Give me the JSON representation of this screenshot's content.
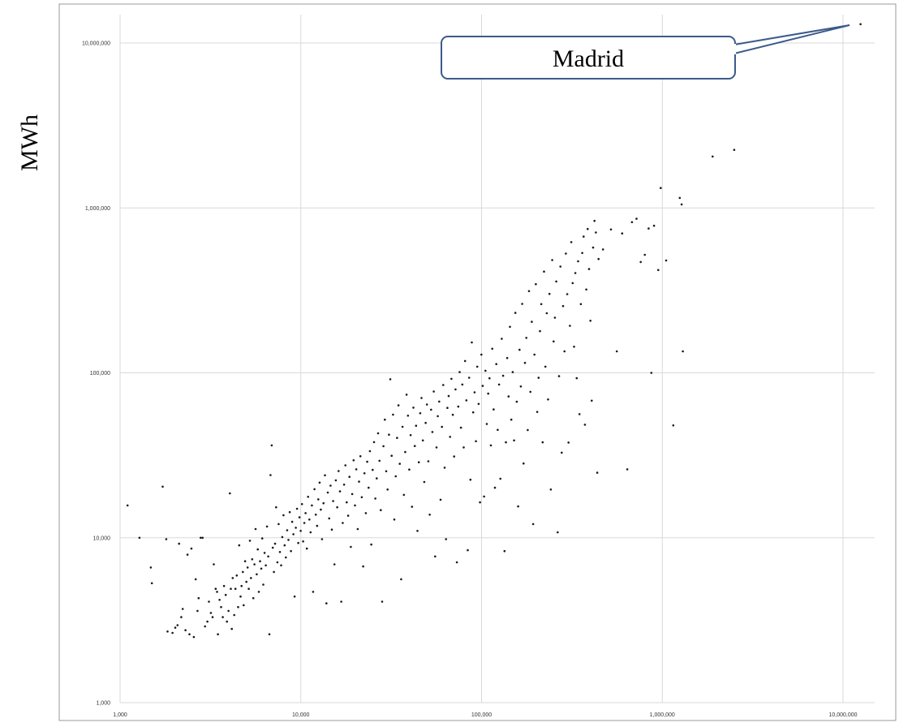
{
  "chart_data": {
    "type": "scatter",
    "title": "",
    "xlabel": "",
    "ylabel": "MWh",
    "x_scale": "log",
    "y_scale": "log",
    "xlim": [
      1000,
      10000000
    ],
    "ylim": [
      1000,
      10000000
    ],
    "grid": true,
    "x_ticks": [
      "1,000",
      "10,000",
      "100,000",
      "1,000,000",
      "10,000,000"
    ],
    "y_ticks": [
      "1,000",
      "10,000",
      "100,000",
      "1,000,000",
      "10,000,000"
    ],
    "annotation": {
      "label": "Madrid",
      "x": 12500000,
      "y": 13000000
    },
    "point_color": "#1a1a1a",
    "points": [
      [
        1100,
        15700
      ],
      [
        1280,
        10000
      ],
      [
        1480,
        6600
      ],
      [
        1500,
        5300
      ],
      [
        1720,
        20400
      ],
      [
        1800,
        9800
      ],
      [
        1830,
        2700
      ],
      [
        1950,
        2650
      ],
      [
        2020,
        2850
      ],
      [
        2080,
        2950
      ],
      [
        2120,
        9200
      ],
      [
        2180,
        3300
      ],
      [
        2220,
        3700
      ],
      [
        2300,
        2750
      ],
      [
        2360,
        7900
      ],
      [
        2420,
        2600
      ],
      [
        2480,
        8600
      ],
      [
        2560,
        2500
      ],
      [
        2620,
        5600
      ],
      [
        2680,
        3600
      ],
      [
        2720,
        4300
      ],
      [
        2790,
        10000
      ],
      [
        2860,
        10000
      ],
      [
        2950,
        2900
      ],
      [
        3040,
        3100
      ],
      [
        3100,
        4100
      ],
      [
        3180,
        3500
      ],
      [
        3250,
        3300
      ],
      [
        3300,
        6900
      ],
      [
        3380,
        4900
      ],
      [
        3440,
        4700
      ],
      [
        3480,
        2600
      ],
      [
        3550,
        4200
      ],
      [
        3620,
        3800
      ],
      [
        3700,
        3300
      ],
      [
        3760,
        5100
      ],
      [
        3840,
        4500
      ],
      [
        3900,
        3100
      ],
      [
        3980,
        3600
      ],
      [
        4050,
        18600
      ],
      [
        4100,
        4900
      ],
      [
        4150,
        2800
      ],
      [
        4200,
        5700
      ],
      [
        4280,
        3400
      ],
      [
        4350,
        4900
      ],
      [
        4420,
        5900
      ],
      [
        4500,
        3800
      ],
      [
        4560,
        9000
      ],
      [
        4640,
        4400
      ],
      [
        4700,
        5100
      ],
      [
        4780,
        6200
      ],
      [
        4830,
        3900
      ],
      [
        4920,
        7200
      ],
      [
        5000,
        5400
      ],
      [
        5080,
        6600
      ],
      [
        5150,
        4900
      ],
      [
        5230,
        9600
      ],
      [
        5300,
        5700
      ],
      [
        5380,
        7400
      ],
      [
        5460,
        4300
      ],
      [
        5540,
        6900
      ],
      [
        5620,
        11300
      ],
      [
        5700,
        6000
      ],
      [
        5780,
        8500
      ],
      [
        5860,
        4700
      ],
      [
        5950,
        7200
      ],
      [
        6040,
        6500
      ],
      [
        6120,
        9900
      ],
      [
        6200,
        5200
      ],
      [
        6300,
        8100
      ],
      [
        6400,
        6800
      ],
      [
        6500,
        11700
      ],
      [
        6600,
        7700
      ],
      [
        6700,
        2600
      ],
      [
        6800,
        24000
      ],
      [
        6900,
        36300
      ],
      [
        7000,
        8700
      ],
      [
        7100,
        6200
      ],
      [
        7200,
        9200
      ],
      [
        7300,
        15300
      ],
      [
        7420,
        7100
      ],
      [
        7540,
        12100
      ],
      [
        7660,
        8200
      ],
      [
        7780,
        6800
      ],
      [
        7900,
        10100
      ],
      [
        8020,
        13700
      ],
      [
        8140,
        9000
      ],
      [
        8260,
        7600
      ],
      [
        8400,
        11100
      ],
      [
        8540,
        9700
      ],
      [
        8680,
        14300
      ],
      [
        8820,
        8300
      ],
      [
        8960,
        12500
      ],
      [
        9100,
        10500
      ],
      [
        9240,
        4400
      ],
      [
        9380,
        11500
      ],
      [
        9530,
        15000
      ],
      [
        9680,
        9300
      ],
      [
        9830,
        13300
      ],
      [
        9980,
        11000
      ],
      [
        10150,
        16000
      ],
      [
        10300,
        9500
      ],
      [
        10460,
        12300
      ],
      [
        10620,
        14100
      ],
      [
        10800,
        8600
      ],
      [
        10970,
        17700
      ],
      [
        11150,
        12900
      ],
      [
        11330,
        10800
      ],
      [
        11520,
        15700
      ],
      [
        11700,
        4700
      ],
      [
        11900,
        19700
      ],
      [
        12100,
        13800
      ],
      [
        12300,
        11800
      ],
      [
        12500,
        17100
      ],
      [
        12700,
        21600
      ],
      [
        12900,
        14800
      ],
      [
        13100,
        9800
      ],
      [
        13350,
        16200
      ],
      [
        13600,
        23900
      ],
      [
        13850,
        4000
      ],
      [
        14100,
        18800
      ],
      [
        14350,
        13100
      ],
      [
        14600,
        20700
      ],
      [
        14850,
        11200
      ],
      [
        15100,
        16700
      ],
      [
        15350,
        6900
      ],
      [
        15620,
        22300
      ],
      [
        15900,
        15300
      ],
      [
        16180,
        25400
      ],
      [
        16460,
        19100
      ],
      [
        16750,
        4100
      ],
      [
        17050,
        12300
      ],
      [
        17350,
        21000
      ],
      [
        17650,
        27500
      ],
      [
        17950,
        16400
      ],
      [
        18270,
        13600
      ],
      [
        18590,
        23400
      ],
      [
        18920,
        8800
      ],
      [
        19250,
        18400
      ],
      [
        19590,
        29500
      ],
      [
        19930,
        15700
      ],
      [
        20280,
        26000
      ],
      [
        20640,
        11300
      ],
      [
        21000,
        21900
      ],
      [
        21370,
        31200
      ],
      [
        21740,
        17600
      ],
      [
        22120,
        6700
      ],
      [
        22510,
        24600
      ],
      [
        22900,
        14100
      ],
      [
        23300,
        28900
      ],
      [
        23710,
        20100
      ],
      [
        24120,
        33500
      ],
      [
        24540,
        9100
      ],
      [
        24970,
        25800
      ],
      [
        25410,
        38000
      ],
      [
        25850,
        17300
      ],
      [
        26300,
        22900
      ],
      [
        26760,
        43000
      ],
      [
        27230,
        29300
      ],
      [
        27700,
        14700
      ],
      [
        28180,
        4100
      ],
      [
        28670,
        35900
      ],
      [
        29170,
        52000
      ],
      [
        29680,
        25300
      ],
      [
        30200,
        19600
      ],
      [
        30730,
        42200
      ],
      [
        31260,
        91400
      ],
      [
        31810,
        31400
      ],
      [
        32360,
        55800
      ],
      [
        32930,
        12900
      ],
      [
        33500,
        23600
      ],
      [
        34090,
        40300
      ],
      [
        34680,
        63500
      ],
      [
        35290,
        28100
      ],
      [
        35900,
        5600
      ],
      [
        36530,
        47100
      ],
      [
        37170,
        18200
      ],
      [
        37820,
        33100
      ],
      [
        38480,
        73700
      ],
      [
        39150,
        55000
      ],
      [
        39830,
        25900
      ],
      [
        40530,
        41900
      ],
      [
        41240,
        15400
      ],
      [
        41960,
        61500
      ],
      [
        42690,
        36000
      ],
      [
        43440,
        47800
      ],
      [
        44200,
        11000
      ],
      [
        44970,
        28700
      ],
      [
        45750,
        56900
      ],
      [
        46550,
        70400
      ],
      [
        47370,
        38900
      ],
      [
        48190,
        21800
      ],
      [
        49030,
        49700
      ],
      [
        49890,
        64300
      ],
      [
        50760,
        29100
      ],
      [
        51650,
        13800
      ],
      [
        52550,
        59800
      ],
      [
        53470,
        43800
      ],
      [
        54400,
        77100
      ],
      [
        55350,
        7700
      ],
      [
        56320,
        35300
      ],
      [
        57300,
        54600
      ],
      [
        58300,
        67000
      ],
      [
        59320,
        17000
      ],
      [
        60360,
        47000
      ],
      [
        61410,
        84400
      ],
      [
        62490,
        26600
      ],
      [
        63580,
        9800
      ],
      [
        64690,
        61300
      ],
      [
        65820,
        72300
      ],
      [
        66970,
        40900
      ],
      [
        68140,
        92000
      ],
      [
        69330,
        55700
      ],
      [
        70540,
        31100
      ],
      [
        71780,
        79400
      ],
      [
        73030,
        7100
      ],
      [
        74310,
        62400
      ],
      [
        75610,
        101000
      ],
      [
        76930,
        46500
      ],
      [
        78270,
        84900
      ],
      [
        79640,
        35300
      ],
      [
        81030,
        118000
      ],
      [
        82450,
        68100
      ],
      [
        83890,
        8400
      ],
      [
        85350,
        93400
      ],
      [
        86840,
        22500
      ],
      [
        88360,
        153000
      ],
      [
        89910,
        57600
      ],
      [
        91480,
        76200
      ],
      [
        93080,
        38500
      ],
      [
        94700,
        109000
      ],
      [
        96360,
        64800
      ],
      [
        98040,
        16400
      ],
      [
        99760,
        129000
      ],
      [
        101500,
        83300
      ],
      [
        103300,
        17800
      ],
      [
        105100,
        103000
      ],
      [
        106900,
        49000
      ],
      [
        108800,
        74800
      ],
      [
        110700,
        92700
      ],
      [
        112600,
        36300
      ],
      [
        114600,
        140000
      ],
      [
        116600,
        60000
      ],
      [
        118600,
        20100
      ],
      [
        120700,
        113000
      ],
      [
        122800,
        45100
      ],
      [
        125000,
        84900
      ],
      [
        127100,
        22800
      ],
      [
        129400,
        161000
      ],
      [
        131600,
        96000
      ],
      [
        134000,
        8300
      ],
      [
        136300,
        37900
      ],
      [
        138700,
        123000
      ],
      [
        141100,
        71900
      ],
      [
        143600,
        190000
      ],
      [
        146100,
        52000
      ],
      [
        148700,
        101000
      ],
      [
        151300,
        38900
      ],
      [
        153900,
        231000
      ],
      [
        156600,
        66800
      ],
      [
        159400,
        15500
      ],
      [
        162200,
        138000
      ],
      [
        165000,
        82700
      ],
      [
        167900,
        262000
      ],
      [
        170800,
        28200
      ],
      [
        173800,
        115000
      ],
      [
        176900,
        163000
      ],
      [
        180000,
        45000
      ],
      [
        183100,
        313000
      ],
      [
        186300,
        76700
      ],
      [
        189600,
        204000
      ],
      [
        192900,
        12100
      ],
      [
        196300,
        129000
      ],
      [
        199700,
        345000
      ],
      [
        203200,
        57900
      ],
      [
        206800,
        93300
      ],
      [
        210400,
        179000
      ],
      [
        214100,
        261000
      ],
      [
        217800,
        37900
      ],
      [
        221600,
        411000
      ],
      [
        225500,
        109000
      ],
      [
        229500,
        230000
      ],
      [
        233500,
        69000
      ],
      [
        237600,
        301000
      ],
      [
        241800,
        19600
      ],
      [
        246000,
        483000
      ],
      [
        250300,
        155000
      ],
      [
        254700,
        216000
      ],
      [
        259200,
        358000
      ],
      [
        263700,
        10800
      ],
      [
        268300,
        95500
      ],
      [
        273000,
        441000
      ],
      [
        277800,
        32800
      ],
      [
        282700,
        254000
      ],
      [
        287600,
        135000
      ],
      [
        292700,
        529000
      ],
      [
        297800,
        300000
      ],
      [
        303000,
        37800
      ],
      [
        308300,
        193000
      ],
      [
        313700,
        620000
      ],
      [
        319200,
        350000
      ],
      [
        324800,
        144000
      ],
      [
        330500,
        403000
      ],
      [
        336300,
        92800
      ],
      [
        342200,
        475000
      ],
      [
        348200,
        56200
      ],
      [
        354300,
        261000
      ],
      [
        360500,
        533000
      ],
      [
        366900,
        670000
      ],
      [
        373300,
        48500
      ],
      [
        379900,
        320000
      ],
      [
        386500,
        745000
      ],
      [
        393300,
        426000
      ],
      [
        400200,
        207000
      ],
      [
        407200,
        67800
      ],
      [
        414400,
        575000
      ],
      [
        421600,
        835000
      ],
      [
        429000,
        710000
      ],
      [
        436600,
        24800
      ],
      [
        444200,
        490000
      ],
      [
        470000,
        560000
      ],
      [
        520000,
        740000
      ],
      [
        560000,
        135000
      ],
      [
        600000,
        700000
      ],
      [
        640000,
        26000
      ],
      [
        680000,
        820000
      ],
      [
        720000,
        860000
      ],
      [
        760000,
        470000
      ],
      [
        800000,
        520000
      ],
      [
        840000,
        750000
      ],
      [
        870000,
        100000
      ],
      [
        900000,
        780000
      ],
      [
        950000,
        420000
      ],
      [
        980000,
        1320000
      ],
      [
        1050000,
        480000
      ],
      [
        1150000,
        48000
      ],
      [
        1280000,
        1050000
      ],
      [
        1300000,
        135000
      ],
      [
        1250000,
        1150000
      ],
      [
        1900000,
        2050000
      ],
      [
        2500000,
        2250000
      ],
      [
        12500000,
        13000000
      ]
    ]
  }
}
